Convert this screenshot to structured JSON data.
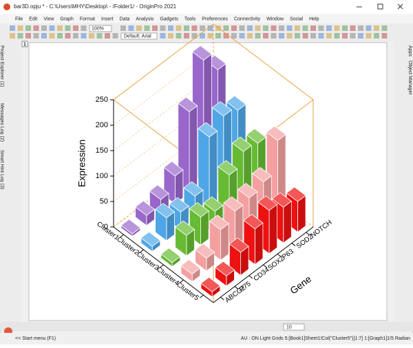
{
  "ui": {
    "title": "bar3D.opju * - C:\\Users\\MHY\\Desktop\\ - /Folder1/ - OriginPro 2021",
    "menu": [
      "File",
      "Edit",
      "View",
      "Graph",
      "Format",
      "Insert",
      "Data",
      "Analysis",
      "Gadgets",
      "Tools",
      "Preferences",
      "Connectivity",
      "Window",
      "Social",
      "Help"
    ],
    "zoom": "100%",
    "font": "Default: Arial",
    "font_size": "10",
    "page_tab": "1",
    "left_panels": [
      "Project Explorer (1)",
      "Messages Log (2)",
      "Smart Hint Log (3)"
    ],
    "right_panels": [
      "Apps",
      "Object Manager"
    ],
    "status_left": "<< Start menu (F1)",
    "status_right": "AU : ON  Light Grids  5:[Book1]Sheet1!Col(\"Cluster5\")[1:7]  1:[Graph1]1!5  Radian"
  },
  "chart_data": {
    "type": "bar3d",
    "x_label": "Gene",
    "z_label": "Expression",
    "categories": [
      "ABCG2",
      "P75",
      "CD34",
      "SOX2",
      "P63",
      "SOD2",
      "NOTCH"
    ],
    "series": [
      {
        "name": "Cluster1",
        "color": "#9966cc",
        "values": [
          5,
          20,
          30,
          55,
          160,
          240,
          200
        ]
      },
      {
        "name": "Cluster2",
        "color": "#4ea6e6",
        "values": [
          10,
          45,
          35,
          45,
          140,
          160,
          150
        ]
      },
      {
        "name": "Cluster3",
        "color": "#66bb33",
        "values": [
          8,
          40,
          55,
          45,
          95,
          120,
          115
        ]
      },
      {
        "name": "Cluster4",
        "color": "#f4a0a0",
        "values": [
          15,
          25,
          60,
          75,
          80,
          90,
          150
        ]
      },
      {
        "name": "Cluster5",
        "color": "#ee1111",
        "values": [
          10,
          20,
          45,
          70,
          85,
          70,
          60
        ]
      }
    ],
    "zlim": [
      0,
      250
    ],
    "zticks": [
      0,
      50,
      100,
      150,
      200,
      250
    ],
    "frame_color": "#e8a040"
  }
}
